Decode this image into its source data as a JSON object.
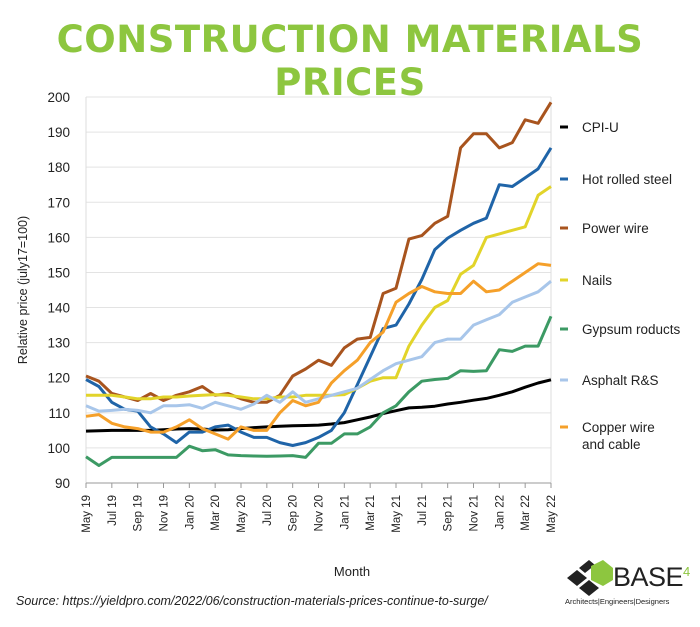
{
  "chart_data": {
    "type": "line",
    "title": "CONSTRUCTION MATERIALS PRICES",
    "xlabel": "Month",
    "ylabel": "Relative price (july17=100)",
    "ylim": [
      90,
      200
    ],
    "yticks": [
      90,
      100,
      110,
      120,
      130,
      140,
      150,
      160,
      170,
      180,
      190,
      200
    ],
    "grid": true,
    "legend_placement": "right",
    "x": [
      "May 19",
      "Jun 19",
      "Jul 19",
      "Aug 19",
      "Sep 19",
      "Oct 19",
      "Nov 19",
      "Dec 19",
      "Jan 20",
      "Feb 20",
      "Mar 20",
      "Apr 20",
      "May 20",
      "Jun 20",
      "Jul 20",
      "Aug 20",
      "Sep 20",
      "Oct 20",
      "Nov 20",
      "Dec 20",
      "Jan 21",
      "Feb 21",
      "Mar 21",
      "Apr 21",
      "May 21",
      "Jun 21",
      "Jul 21",
      "Aug 21",
      "Sep 21",
      "Oct 21",
      "Nov 21",
      "Dec 21",
      "Jan 22",
      "Feb 22",
      "Mar 22",
      "Apr 22",
      "May 22"
    ],
    "xtick_labels": [
      "May 19",
      "Jul 19",
      "Sep 19",
      "Nov 19",
      "Jan 20",
      "Mar 20",
      "May 20",
      "Jul 20",
      "Sep 20",
      "Nov 20",
      "Jan 21",
      "Mar 21",
      "May 21",
      "Jul 21",
      "Sep 21",
      "Nov 21",
      "Jan 22",
      "Mar 22",
      "May 22"
    ],
    "series": [
      {
        "name": "CPI-U",
        "color": "#000000",
        "values": [
          104.8,
          104.9,
          105,
          105,
          105,
          105,
          105.2,
          105.4,
          105.5,
          105.4,
          105.1,
          105.2,
          105.5,
          105.8,
          106,
          106.2,
          106.3,
          106.4,
          106.5,
          106.8,
          107.2,
          108,
          108.8,
          109.8,
          110.6,
          111.4,
          111.6,
          111.9,
          112.5,
          113,
          113.6,
          114.1,
          115,
          116,
          117.3,
          118.5,
          119.4
        ]
      },
      {
        "name": "Hot rolled steel",
        "color": "#1f64a8",
        "values": [
          119.5,
          117.5,
          113,
          111,
          110.5,
          106,
          104,
          101.5,
          104.5,
          104.5,
          106,
          106.5,
          104.5,
          103,
          103,
          101.5,
          100.7,
          101.5,
          103,
          105,
          110,
          118,
          126,
          134,
          135,
          141,
          148,
          156.5,
          159.8,
          162,
          164,
          165.5,
          175,
          174.5,
          177,
          179.5,
          185.5
        ]
      },
      {
        "name": "Power wire",
        "color": "#a8541e",
        "values": [
          120.5,
          119,
          115.5,
          114.5,
          113.5,
          115.5,
          113.5,
          115,
          116,
          117.5,
          115,
          115.5,
          114,
          113,
          113,
          115,
          120.5,
          122.5,
          125,
          123.5,
          128.5,
          131,
          131.5,
          144,
          145.5,
          159.5,
          160.5,
          164,
          166,
          185.5,
          189.5,
          189.5,
          185.5,
          187,
          193.5,
          192.5,
          198.5
        ]
      },
      {
        "name": "Nails",
        "color": "#e2d42a",
        "values": [
          115,
          115,
          115,
          114.5,
          114,
          114,
          114.5,
          114.5,
          114.8,
          115,
          115.2,
          115,
          114.5,
          114,
          114,
          114.5,
          114.5,
          115,
          115,
          115,
          115.2,
          117,
          119,
          120,
          120,
          129,
          135,
          140,
          142,
          149.5,
          152,
          160,
          161,
          162,
          163,
          172,
          174.5
        ]
      },
      {
        "name": "Gypsum roducts",
        "color": "#3c9a64",
        "values": [
          97.5,
          95,
          97.3,
          97.3,
          97.3,
          97.3,
          97.3,
          97.3,
          100.5,
          99.2,
          99.5,
          98,
          97.8,
          97.7,
          97.6,
          97.7,
          97.8,
          97.3,
          101.3,
          101.3,
          104,
          104,
          106,
          110,
          112,
          116,
          119,
          119.5,
          119.8,
          122,
          121.8,
          122,
          128,
          127.5,
          129,
          129,
          137.5
        ]
      },
      {
        "name": "Asphalt R&S",
        "color": "#a8c6ea",
        "values": [
          112,
          110.5,
          110.7,
          111,
          110.7,
          110,
          112,
          112,
          112.3,
          111.3,
          113,
          112,
          111,
          112.5,
          115,
          113,
          116,
          113,
          114,
          115,
          116,
          117,
          119.5,
          122,
          124,
          125,
          126,
          130,
          131,
          131,
          135,
          136.5,
          138,
          141.5,
          143,
          144.5,
          147.5
        ]
      },
      {
        "name": "Copper wire and cable",
        "name_lines": [
          "Copper wire",
          "and cable"
        ],
        "color": "#f5a02a",
        "values": [
          109,
          109.5,
          107,
          106,
          105.5,
          104.5,
          104.5,
          106,
          108,
          105.5,
          104,
          102.5,
          106,
          105,
          105,
          110,
          113.5,
          112,
          113,
          118.5,
          122,
          125,
          130,
          133,
          141.5,
          144,
          146,
          144.5,
          144,
          144,
          147.5,
          144.5,
          145,
          147.5,
          150,
          152.5,
          152
        ]
      }
    ]
  },
  "source": "Source: https://yieldpro.com/2022/06/construction-materials-prices-continue-to-surge/",
  "logo": {
    "brand": "BASE",
    "brand_suffix": "4",
    "tagline": "Architects|Engineers|Designers",
    "accent": "#8dc63f"
  }
}
